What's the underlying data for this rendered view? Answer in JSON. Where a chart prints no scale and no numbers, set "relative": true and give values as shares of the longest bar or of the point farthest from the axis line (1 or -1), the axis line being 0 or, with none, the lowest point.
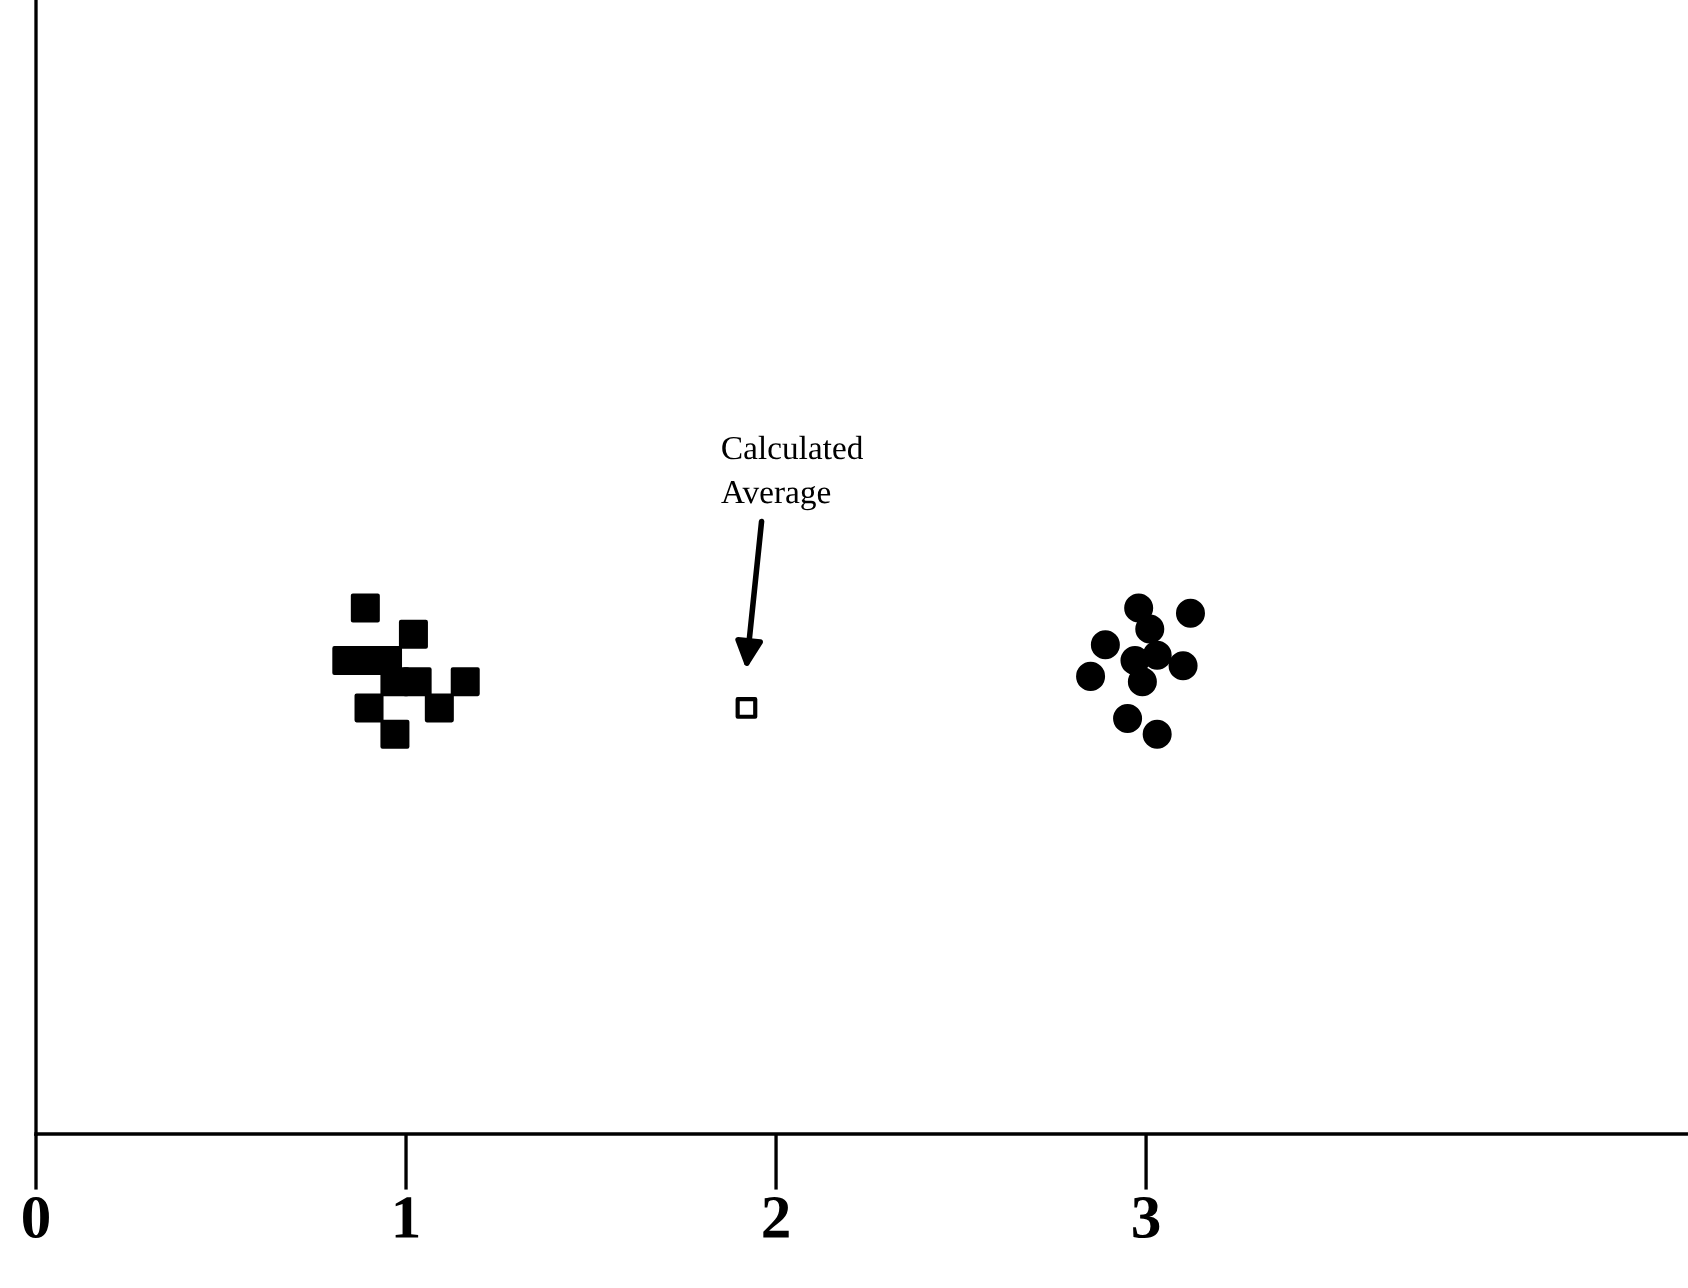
{
  "chart_data": {
    "type": "scatter",
    "relative": true,
    "xlim": [
      0,
      4.46
    ],
    "xticks": [
      0,
      1,
      2,
      3
    ],
    "tick_labels": "x",
    "grid": false,
    "legend": false,
    "series": [
      {
        "color": "#000000",
        "marker": "square",
        "x": [
          0.89,
          1.02,
          0.84,
          0.89,
          0.95,
          0.97,
          1.03,
          1.16,
          0.9,
          1.09,
          0.97
        ],
        "values": [
          1.0,
          0.95,
          0.9,
          0.9,
          0.9,
          0.86,
          0.86,
          0.86,
          0.81,
          0.81,
          0.76
        ]
      },
      {
        "color": "#000000",
        "marker": "circle",
        "x": [
          2.98,
          3.12,
          3.01,
          2.89,
          3.03,
          2.97,
          2.85,
          3.1,
          2.99,
          2.95,
          3.03
        ],
        "values": [
          1.0,
          0.99,
          0.96,
          0.93,
          0.91,
          0.9,
          0.87,
          0.89,
          0.86,
          0.79,
          0.76
        ]
      },
      {
        "color": "#ffffff",
        "marker": "square",
        "x": [
          1.92
        ],
        "values": [
          0.81
        ]
      }
    ],
    "annotations": [
      "Calculated\nAverage"
    ]
  }
}
